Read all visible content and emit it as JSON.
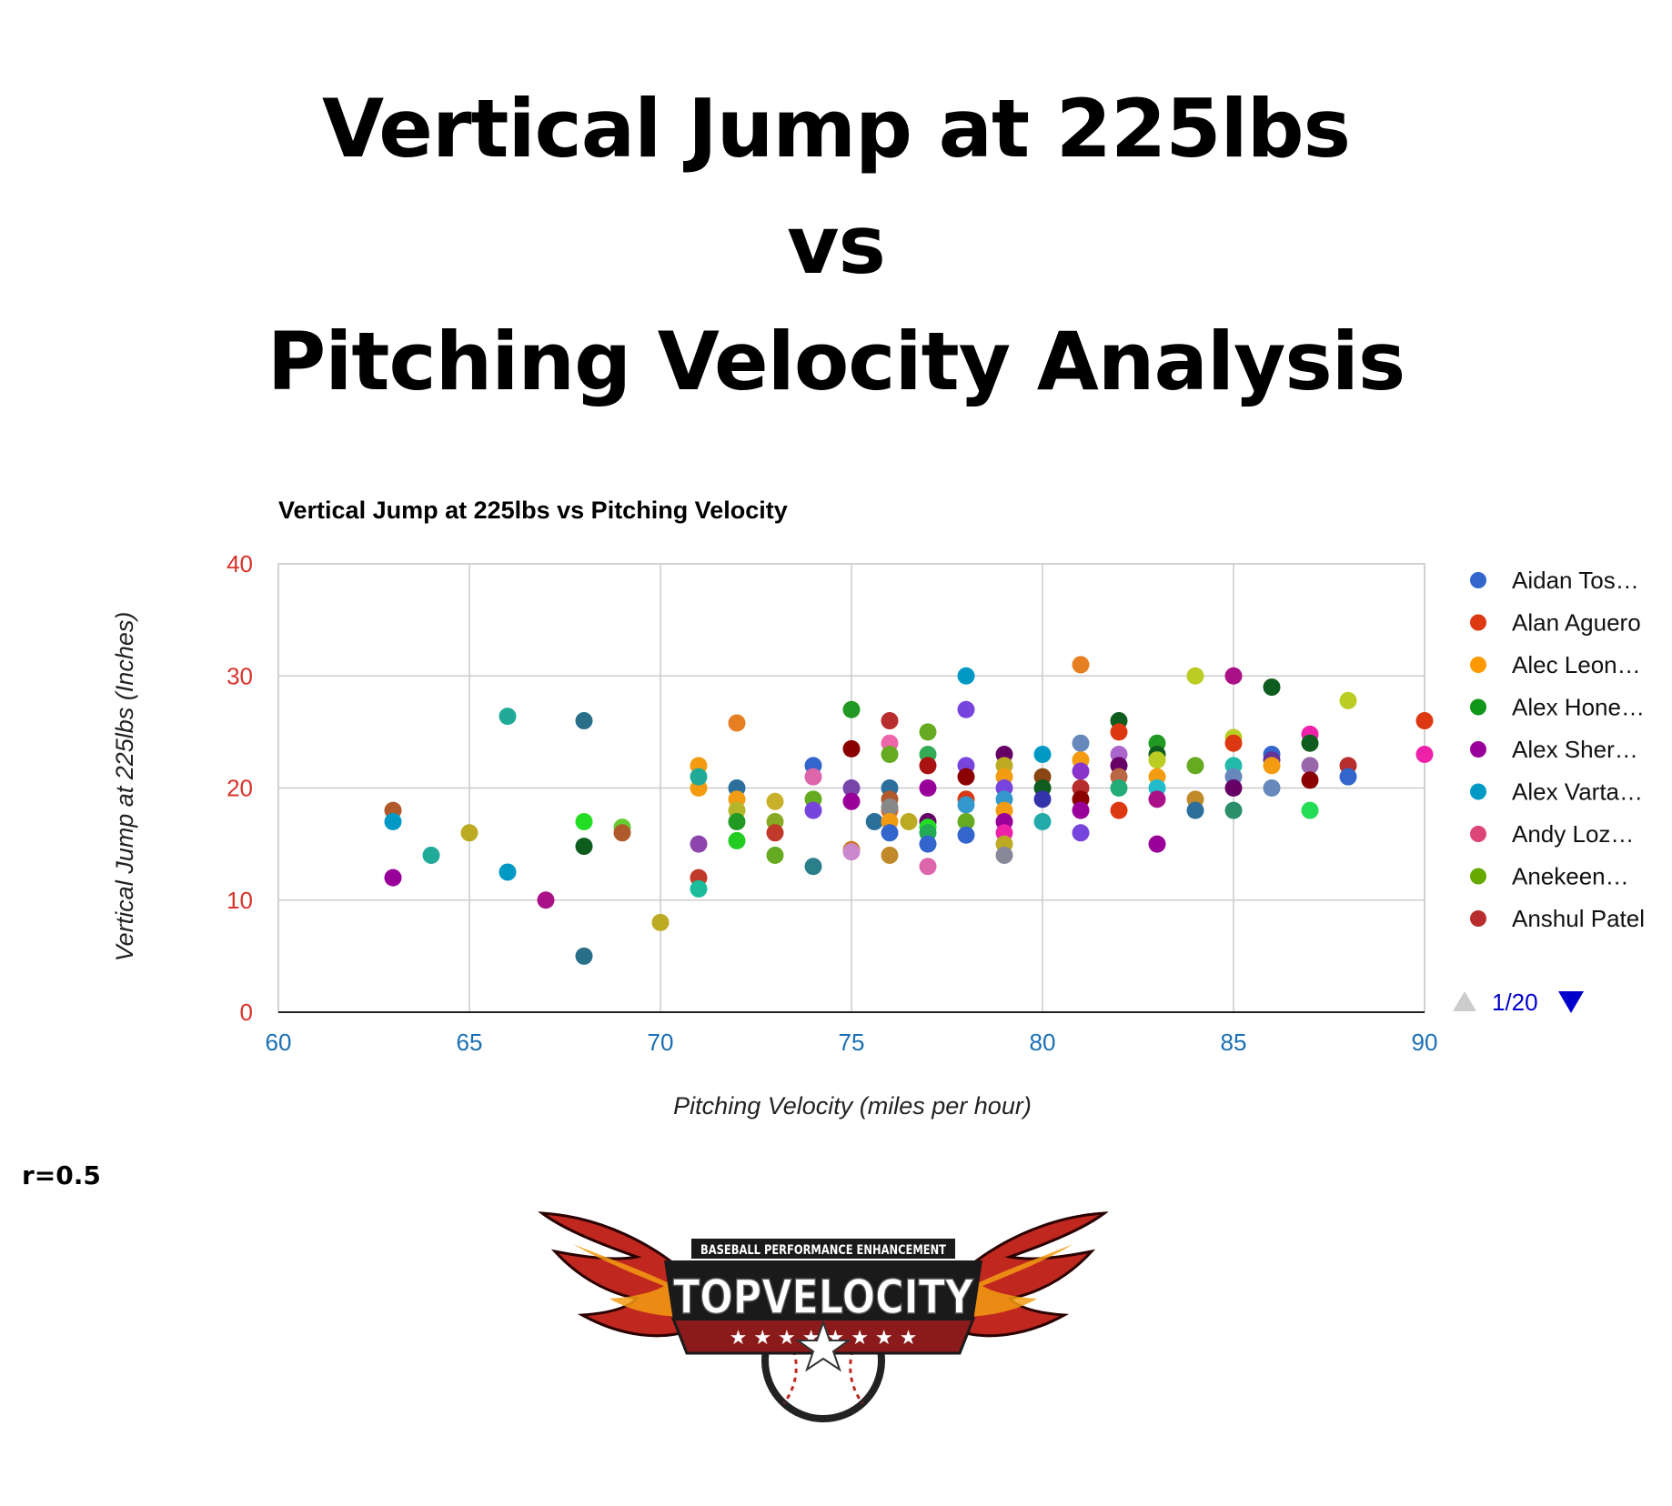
{
  "page": {
    "title_lines": [
      "Vertical Jump at 225lbs",
      "vs",
      "Pitching Velocity Analysis"
    ],
    "correlation": "r=0.5",
    "logo": {
      "tagline": "BASEBALL PERFORMANCE ENHANCEMENT",
      "brand": "TOPVELOCITY"
    }
  },
  "chart_data": {
    "type": "scatter",
    "title": "Vertical Jump at 225lbs vs Pitching Velocity",
    "xlabel": "Pitching Velocity (miles per hour)",
    "ylabel": "Vertical Jump at 225lbs (Inches)",
    "xlim": [
      60,
      90
    ],
    "ylim": [
      0,
      40
    ],
    "xticks": [
      60,
      65,
      70,
      75,
      80,
      85,
      90
    ],
    "yticks": [
      0,
      10,
      20,
      30,
      40
    ],
    "grid": true,
    "legend_position": "right",
    "legend_page": "1/20",
    "colors": {
      "x_tick": "#1a6fb5",
      "y_tick": "#d9332b",
      "grid": "#cccccc",
      "pager_active": "#0000cc",
      "pager_disabled": "#cccccc"
    },
    "legend": [
      {
        "name": "Aidan Tos…",
        "color": "#3366cc"
      },
      {
        "name": "Alan Aguero",
        "color": "#dc3912"
      },
      {
        "name": "Alec Leon…",
        "color": "#ff9900"
      },
      {
        "name": "Alex Hone…",
        "color": "#109618"
      },
      {
        "name": "Alex Sher…",
        "color": "#990099"
      },
      {
        "name": "Alex Varta…",
        "color": "#0099c6"
      },
      {
        "name": "Andy Loz…",
        "color": "#dd4477"
      },
      {
        "name": "Anekeen…",
        "color": "#66aa00"
      },
      {
        "name": "Anshul Patel",
        "color": "#b82e2e"
      }
    ],
    "points": [
      [
        63,
        18,
        "#b05a2b"
      ],
      [
        63,
        17,
        "#0099c6"
      ],
      [
        63,
        12,
        "#990099"
      ],
      [
        64,
        14,
        "#22aa99"
      ],
      [
        65,
        16,
        "#bbaa22"
      ],
      [
        66,
        26.4,
        "#22aa99"
      ],
      [
        66,
        12.5,
        "#0099c6"
      ],
      [
        67,
        10,
        "#aa1188"
      ],
      [
        68,
        26,
        "#2a6f8a"
      ],
      [
        68,
        17,
        "#22dd22"
      ],
      [
        68,
        14.8,
        "#0e5c1e"
      ],
      [
        68,
        5,
        "#2a6f8a"
      ],
      [
        69,
        16.5,
        "#66cc33"
      ],
      [
        69,
        16,
        "#b05a2b"
      ],
      [
        70,
        8,
        "#bbaa22"
      ],
      [
        71,
        22,
        "#f39c12"
      ],
      [
        71,
        20,
        "#f39c12"
      ],
      [
        71,
        21,
        "#22aa99"
      ],
      [
        71,
        15,
        "#8e44ad"
      ],
      [
        71,
        12,
        "#c0392b"
      ],
      [
        71,
        11,
        "#1abc9c"
      ],
      [
        72,
        25.8,
        "#e67e22"
      ],
      [
        72,
        20,
        "#2c6e9c"
      ],
      [
        72,
        19,
        "#f39c12"
      ],
      [
        72,
        18,
        "#b5b52a"
      ],
      [
        72,
        17,
        "#229922"
      ],
      [
        72,
        15.3,
        "#22cc22"
      ],
      [
        73,
        18.8,
        "#c8b02a"
      ],
      [
        73,
        17,
        "#88aa22"
      ],
      [
        73,
        16,
        "#c0392b"
      ],
      [
        73,
        14,
        "#66aa22"
      ],
      [
        74,
        22,
        "#3366cc"
      ],
      [
        74,
        21,
        "#dd66aa"
      ],
      [
        74,
        19,
        "#66aa22"
      ],
      [
        74,
        18,
        "#7744dd"
      ],
      [
        74,
        13,
        "#2a7f8a"
      ],
      [
        75,
        27,
        "#229922"
      ],
      [
        75,
        23.5,
        "#8b0000"
      ],
      [
        75,
        20,
        "#7744aa"
      ],
      [
        75,
        18.8,
        "#990099"
      ],
      [
        75,
        14.5,
        "#cc7722"
      ],
      [
        75,
        14.3,
        "#cc88cc"
      ],
      [
        75.6,
        17,
        "#2a6f9a"
      ],
      [
        76,
        26,
        "#b82e2e"
      ],
      [
        76,
        24,
        "#ee66aa"
      ],
      [
        76,
        23,
        "#66aa22"
      ],
      [
        76,
        20,
        "#2c6e9c"
      ],
      [
        76,
        19,
        "#b05a2b"
      ],
      [
        76,
        18,
        "#dd6622"
      ],
      [
        76,
        18.3,
        "#888888"
      ],
      [
        76,
        17,
        "#f39c12"
      ],
      [
        76,
        16,
        "#3366cc"
      ],
      [
        76,
        14,
        "#c08a2b"
      ],
      [
        76.5,
        17,
        "#bbaa22"
      ],
      [
        77,
        25,
        "#66aa22"
      ],
      [
        77,
        23,
        "#33aa55"
      ],
      [
        77,
        22,
        "#aa1111"
      ],
      [
        77,
        20,
        "#990099"
      ],
      [
        77,
        17,
        "#660066"
      ],
      [
        77,
        16.5,
        "#22dd22"
      ],
      [
        77,
        16,
        "#22aa55"
      ],
      [
        77,
        15,
        "#3366cc"
      ],
      [
        77,
        13,
        "#dd66aa"
      ],
      [
        78,
        30,
        "#0099c6"
      ],
      [
        78,
        27,
        "#7744dd"
      ],
      [
        78,
        22,
        "#7744dd"
      ],
      [
        78,
        21,
        "#8b0000"
      ],
      [
        78,
        19,
        "#dc3912"
      ],
      [
        78,
        18.5,
        "#3399cc"
      ],
      [
        78,
        17,
        "#66aa22"
      ],
      [
        78,
        15.8,
        "#3366cc"
      ],
      [
        79,
        23,
        "#660066"
      ],
      [
        79,
        22,
        "#bbaa22"
      ],
      [
        79,
        21,
        "#f39c12"
      ],
      [
        79,
        20,
        "#7744dd"
      ],
      [
        79,
        19,
        "#3399cc"
      ],
      [
        79,
        18,
        "#f39c12"
      ],
      [
        79,
        17,
        "#990099"
      ],
      [
        79,
        16,
        "#ee22aa"
      ],
      [
        79,
        15,
        "#bbaa22"
      ],
      [
        79,
        14,
        "#888899"
      ],
      [
        80,
        23,
        "#0099c6"
      ],
      [
        80,
        21,
        "#8b4513"
      ],
      [
        80,
        20,
        "#0e5c1e"
      ],
      [
        80,
        19,
        "#3333aa"
      ],
      [
        80,
        17,
        "#22aaaa"
      ],
      [
        81,
        31,
        "#e67e22"
      ],
      [
        81,
        24,
        "#6688bb"
      ],
      [
        81,
        22.5,
        "#f39c12"
      ],
      [
        81,
        21.5,
        "#8833cc"
      ],
      [
        81,
        20,
        "#b82e2e"
      ],
      [
        81,
        19,
        "#8b0000"
      ],
      [
        81,
        18,
        "#990099"
      ],
      [
        81,
        16,
        "#7744dd"
      ],
      [
        82,
        26,
        "#0e5c1e"
      ],
      [
        82,
        25,
        "#dc3912"
      ],
      [
        82,
        23,
        "#aa66cc"
      ],
      [
        82,
        22,
        "#660066"
      ],
      [
        82,
        21,
        "#bb6644"
      ],
      [
        82,
        20,
        "#22aa77"
      ],
      [
        82,
        18,
        "#dc3912"
      ],
      [
        83,
        24,
        "#229922"
      ],
      [
        83,
        23,
        "#0e5c1e"
      ],
      [
        83,
        22.5,
        "#bbcc22"
      ],
      [
        83,
        21,
        "#f39c12"
      ],
      [
        83,
        20,
        "#22bbcc"
      ],
      [
        83,
        19,
        "#aa1188"
      ],
      [
        83,
        15,
        "#990099"
      ],
      [
        84,
        30,
        "#bbcc22"
      ],
      [
        84,
        22,
        "#66aa22"
      ],
      [
        84,
        19,
        "#c08a2b"
      ],
      [
        84,
        18,
        "#2c6e9c"
      ],
      [
        85,
        30,
        "#aa1188"
      ],
      [
        85,
        24.5,
        "#bbcc22"
      ],
      [
        85,
        24,
        "#dc3912"
      ],
      [
        85,
        22,
        "#22bbaa"
      ],
      [
        85,
        21,
        "#6688bb"
      ],
      [
        85,
        20,
        "#660066"
      ],
      [
        85,
        18,
        "#2a8f6a"
      ],
      [
        86,
        29,
        "#0e5c1e"
      ],
      [
        86,
        23,
        "#3366cc"
      ],
      [
        86,
        22.5,
        "#663399"
      ],
      [
        86,
        22,
        "#f39c12"
      ],
      [
        86,
        20,
        "#6688bb"
      ],
      [
        87,
        24.8,
        "#ee22aa"
      ],
      [
        87,
        24,
        "#0e5c1e"
      ],
      [
        87,
        22,
        "#9966aa"
      ],
      [
        87,
        20.7,
        "#8b0000"
      ],
      [
        87,
        18,
        "#22dd55"
      ],
      [
        88,
        27.8,
        "#bbcc22"
      ],
      [
        88,
        22,
        "#b82e2e"
      ],
      [
        88,
        21,
        "#3366cc"
      ],
      [
        90,
        26,
        "#dc3912"
      ],
      [
        90,
        23,
        "#ee22aa"
      ]
    ]
  }
}
